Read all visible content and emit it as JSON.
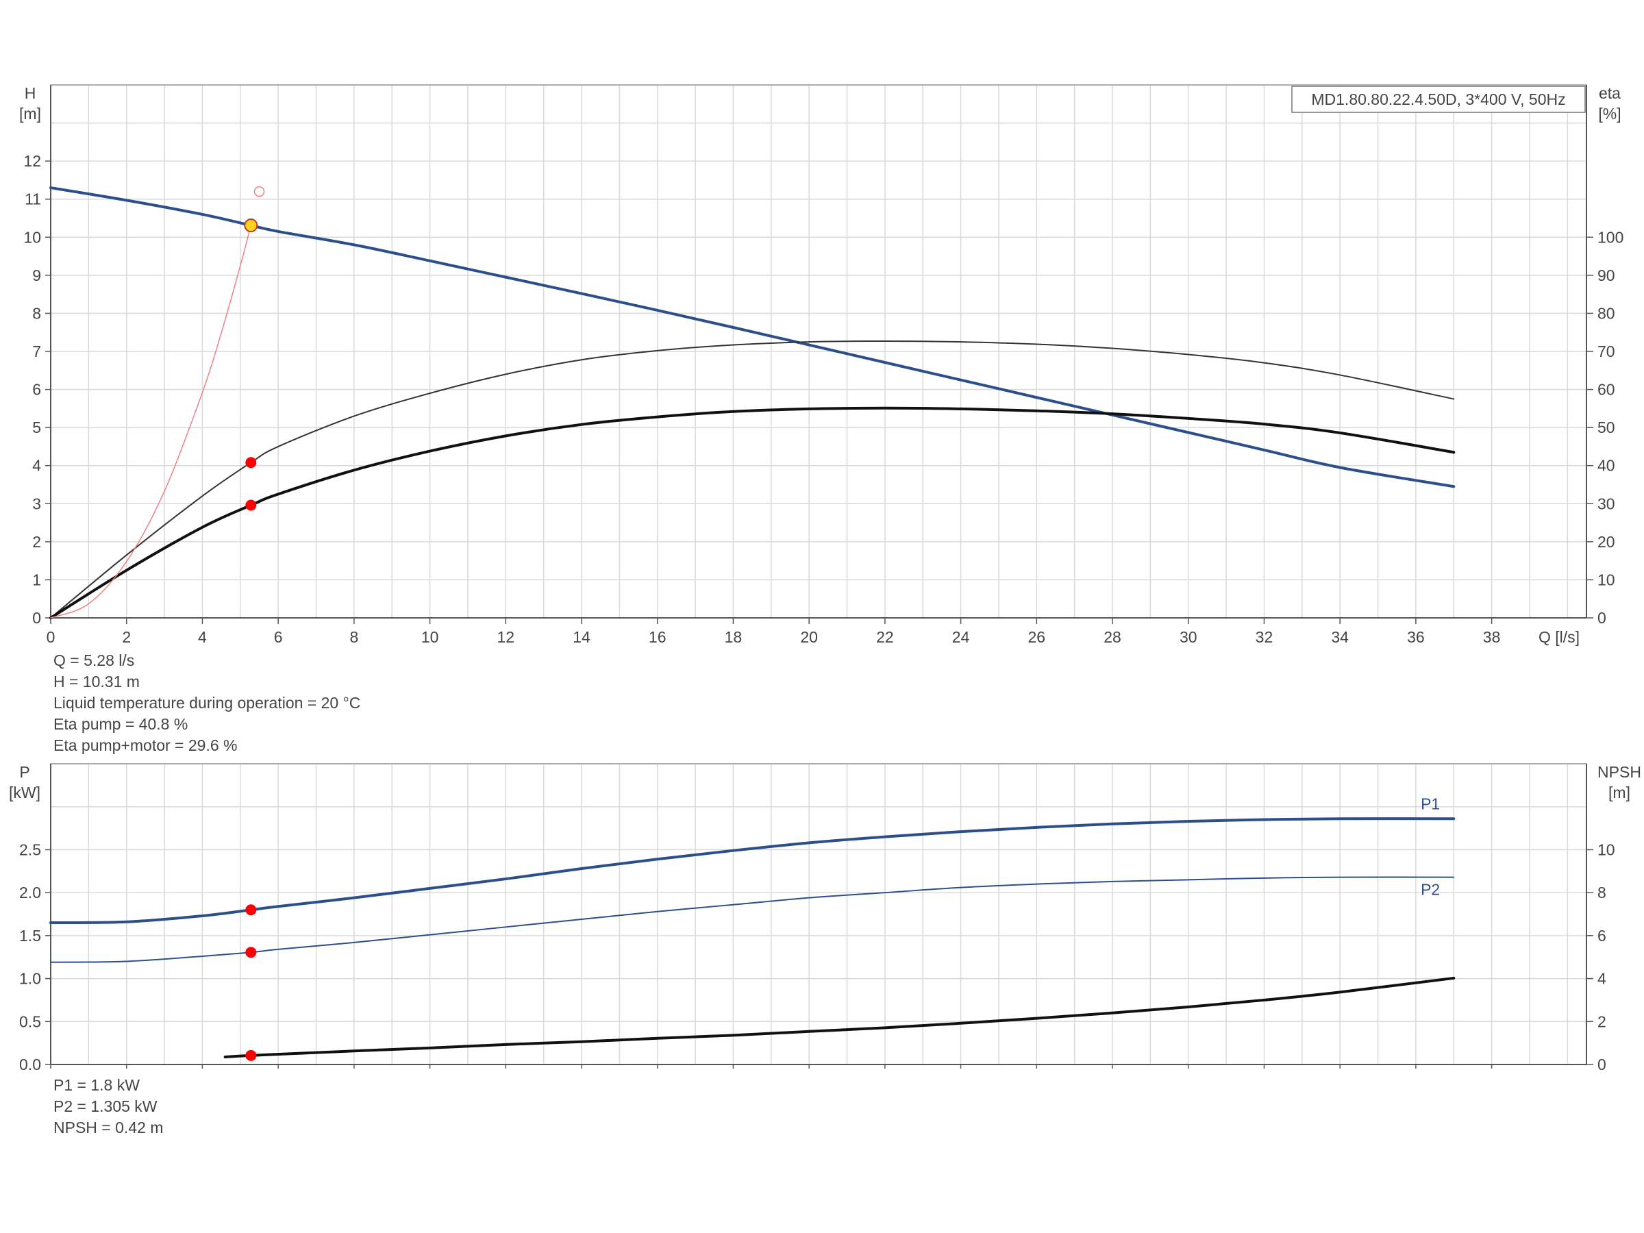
{
  "chart_data": [
    {
      "type": "line",
      "title": "MD1.80.80.22.4.50D, 3*400 V, 50Hz",
      "y_left_label": [
        "H",
        "[m]"
      ],
      "y_right_label": [
        "eta",
        "[%]"
      ],
      "xlabel": "Q [l/s]",
      "xlim": [
        0,
        40.5
      ],
      "x_ticks": [
        0,
        2,
        4,
        6,
        8,
        10,
        12,
        14,
        16,
        18,
        20,
        22,
        24,
        26,
        28,
        30,
        32,
        34,
        36,
        38
      ],
      "ylim_left": [
        0,
        14
      ],
      "y_ticks_left": [
        0,
        1,
        2,
        3,
        4,
        5,
        6,
        7,
        8,
        9,
        10,
        11,
        12
      ],
      "ylim_right": [
        0,
        140
      ],
      "y_ticks_right": [
        0,
        10,
        20,
        30,
        40,
        50,
        60,
        70,
        80,
        90,
        100
      ],
      "grid": true,
      "series": [
        {
          "key": "H",
          "axis": "left",
          "color": "#2b4f8a",
          "width": 4,
          "x": [
            0,
            2,
            4,
            5.28,
            6,
            8,
            10,
            12,
            14,
            16,
            18,
            20,
            22,
            24,
            26,
            28,
            30,
            32,
            34,
            37
          ],
          "y": [
            11.3,
            10.97,
            10.6,
            10.31,
            10.15,
            9.8,
            9.38,
            8.95,
            8.52,
            8.08,
            7.63,
            7.17,
            6.71,
            6.25,
            5.79,
            5.33,
            4.87,
            4.41,
            3.95,
            3.45
          ]
        },
        {
          "key": "eta_pump",
          "axis": "right",
          "color": "#333333",
          "width": 2,
          "x": [
            0,
            2,
            4,
            5.28,
            6,
            8,
            10,
            12,
            14,
            16,
            18,
            20,
            22,
            24,
            26,
            28,
            30,
            32,
            34,
            37
          ],
          "y": [
            0,
            16.5,
            32,
            40.8,
            45,
            53,
            59,
            64,
            67.8,
            70.2,
            71.7,
            72.5,
            72.7,
            72.5,
            71.9,
            70.8,
            69.2,
            67,
            63.8,
            57.5
          ]
        },
        {
          "key": "eta_total",
          "axis": "right",
          "color": "#111111",
          "width": 4,
          "x": [
            0,
            2,
            4,
            5.28,
            6,
            8,
            10,
            12,
            14,
            16,
            18,
            20,
            22,
            24,
            26,
            28,
            30,
            32,
            34,
            37
          ],
          "y": [
            0,
            12.5,
            23.8,
            29.6,
            32.5,
            38.8,
            43.8,
            47.8,
            50.8,
            52.8,
            54.2,
            54.9,
            55.1,
            54.9,
            54.4,
            53.6,
            52.4,
            50.9,
            48.6,
            43.5
          ]
        },
        {
          "key": "system_curve",
          "axis": "left",
          "color": "#f08080",
          "width": 1.5,
          "x": [
            0,
            1,
            2,
            3,
            4,
            4.5,
            5,
            5.28
          ],
          "y": [
            0,
            0.37,
            1.48,
            3.33,
            5.92,
            7.49,
            9.25,
            10.31
          ]
        }
      ],
      "operating_point": {
        "x": 5.28,
        "y": 10.31,
        "color": "#ffd21e"
      },
      "marker_points": [
        {
          "x": 5.28,
          "y": 40.8,
          "axis": "right",
          "color": "#ff0000"
        },
        {
          "x": 5.28,
          "y": 29.6,
          "axis": "right",
          "color": "#ff0000"
        }
      ],
      "open_marker": {
        "x": 5.5,
        "y": 11.2,
        "axis": "left",
        "color": "#f08080"
      }
    },
    {
      "type": "line",
      "y_left_label": [
        "P",
        "[kW]"
      ],
      "y_right_label": [
        "NPSH",
        "[m]"
      ],
      "xlim": [
        0,
        40.5
      ],
      "x_ticks": [
        0,
        2,
        4,
        6,
        8,
        10,
        12,
        14,
        16,
        18,
        20,
        22,
        24,
        26,
        28,
        30,
        32,
        34,
        36,
        38
      ],
      "ylim_left": [
        0,
        3.5
      ],
      "y_ticks_left": [
        0.0,
        0.5,
        1.0,
        1.5,
        2.0,
        2.5
      ],
      "y_tick_left_labels": [
        "0.0",
        "0.5",
        "1.0",
        "1.5",
        "2.0",
        "2.5"
      ],
      "ylim_right": [
        0,
        14
      ],
      "y_ticks_right": [
        0,
        2,
        4,
        6,
        8,
        10
      ],
      "grid": true,
      "series": [
        {
          "name": "P1",
          "axis": "left",
          "color": "#2b4f8a",
          "width": 4,
          "x": [
            0,
            2,
            4,
            5.28,
            6,
            8,
            10,
            12,
            14,
            16,
            18,
            20,
            22,
            24,
            26,
            28,
            30,
            32,
            34,
            37
          ],
          "y": [
            1.65,
            1.66,
            1.73,
            1.8,
            1.84,
            1.94,
            2.05,
            2.16,
            2.28,
            2.39,
            2.49,
            2.58,
            2.65,
            2.71,
            2.76,
            2.8,
            2.83,
            2.85,
            2.86,
            2.86
          ]
        },
        {
          "name": "P2",
          "axis": "left",
          "color": "#2b4f8a",
          "width": 2,
          "x": [
            0,
            2,
            4,
            5.28,
            6,
            8,
            10,
            12,
            14,
            16,
            18,
            20,
            22,
            24,
            26,
            28,
            30,
            32,
            34,
            37
          ],
          "y": [
            1.19,
            1.2,
            1.26,
            1.305,
            1.34,
            1.42,
            1.51,
            1.6,
            1.69,
            1.78,
            1.86,
            1.94,
            2.0,
            2.06,
            2.1,
            2.13,
            2.15,
            2.17,
            2.18,
            2.18
          ]
        },
        {
          "key": "NPSH",
          "axis": "right",
          "color": "#111111",
          "width": 4,
          "x": [
            4.6,
            5.28,
            8,
            10,
            12,
            14,
            16,
            18,
            20,
            22,
            24,
            26,
            28,
            30,
            32,
            34,
            37
          ],
          "y": [
            0.35,
            0.42,
            0.63,
            0.77,
            0.93,
            1.06,
            1.22,
            1.36,
            1.54,
            1.71,
            1.92,
            2.15,
            2.4,
            2.68,
            3.0,
            3.37,
            4.02
          ]
        }
      ],
      "marker_points": [
        {
          "x": 5.28,
          "y": 1.8,
          "axis": "left",
          "color": "#ff0000"
        },
        {
          "x": 5.28,
          "y": 1.305,
          "axis": "left",
          "color": "#ff0000"
        },
        {
          "x": 5.28,
          "y": 0.42,
          "axis": "right",
          "color": "#ff0000"
        }
      ]
    }
  ],
  "readout_top": [
    "Q = 5.28 l/s",
    "H = 10.31 m",
    "Liquid temperature during operation = 20 °C",
    "Eta pump = 40.8 %",
    "Eta pump+motor = 29.6 %"
  ],
  "readout_bottom": [
    "P1 = 1.8 kW",
    "P2 = 1.305 kW",
    "NPSH = 0.42 m"
  ]
}
